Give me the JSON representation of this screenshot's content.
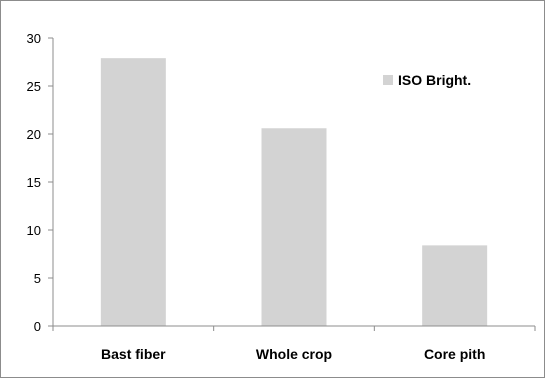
{
  "chart_data": {
    "type": "bar",
    "categories": [
      "Bast fiber",
      "Whole crop",
      "Core pith"
    ],
    "series": [
      {
        "name": "ISO Bright.",
        "values": [
          27.9,
          20.6,
          8.4
        ],
        "color": "#d3d3d3"
      }
    ],
    "title": "",
    "xlabel": "",
    "ylabel": "",
    "ylim": [
      0,
      30
    ],
    "yticks": [
      0,
      5,
      10,
      15,
      20,
      25,
      30
    ],
    "grid": false,
    "legend": "right"
  }
}
